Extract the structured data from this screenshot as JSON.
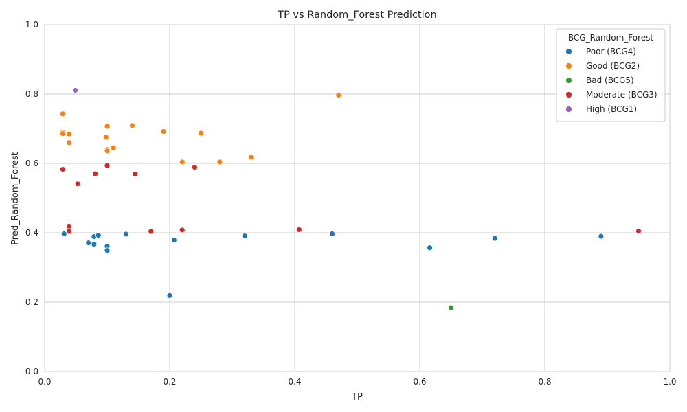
{
  "chart_data": {
    "type": "scatter",
    "title": "TP vs Random_Forest Prediction",
    "xlabel": "TP",
    "ylabel": "Pred_Random_Forest",
    "xlim": [
      0.0,
      1.0
    ],
    "ylim": [
      0.0,
      1.0
    ],
    "xticks": [
      "0.0",
      "0.2",
      "0.4",
      "0.6",
      "0.8",
      "1.0"
    ],
    "yticks": [
      "0.0",
      "0.2",
      "0.4",
      "0.6",
      "0.8",
      "1.0"
    ],
    "grid": true,
    "legend": {
      "title": "BCG_Random_Forest",
      "placement": "top-right"
    },
    "series": [
      {
        "name": "Poor (BCG4)",
        "color": "#1f77b4",
        "points": [
          [
            0.031,
            0.397
          ],
          [
            0.07,
            0.371
          ],
          [
            0.079,
            0.367
          ],
          [
            0.079,
            0.389
          ],
          [
            0.086,
            0.393
          ],
          [
            0.1,
            0.361
          ],
          [
            0.1,
            0.349
          ],
          [
            0.13,
            0.396
          ],
          [
            0.2,
            0.219
          ],
          [
            0.207,
            0.379
          ],
          [
            0.32,
            0.391
          ],
          [
            0.46,
            0.397
          ],
          [
            0.616,
            0.357
          ],
          [
            0.72,
            0.384
          ],
          [
            0.89,
            0.39
          ]
        ]
      },
      {
        "name": "Good (BCG2)",
        "color": "#ff7f0e",
        "points": [
          [
            0.029,
            0.743
          ],
          [
            0.029,
            0.69
          ],
          [
            0.029,
            0.686
          ],
          [
            0.039,
            0.685
          ],
          [
            0.039,
            0.66
          ],
          [
            0.098,
            0.676
          ],
          [
            0.1,
            0.707
          ],
          [
            0.1,
            0.64
          ],
          [
            0.1,
            0.636
          ],
          [
            0.11,
            0.645
          ],
          [
            0.14,
            0.709
          ],
          [
            0.19,
            0.692
          ],
          [
            0.22,
            0.604
          ],
          [
            0.25,
            0.687
          ],
          [
            0.28,
            0.604
          ],
          [
            0.33,
            0.618
          ],
          [
            0.47,
            0.797
          ]
        ]
      },
      {
        "name": "Bad (BCG5)",
        "color": "#2ca02c",
        "points": [
          [
            0.65,
            0.184
          ]
        ]
      },
      {
        "name": "Moderate (BCG3)",
        "color": "#d62728",
        "points": [
          [
            0.029,
            0.583
          ],
          [
            0.039,
            0.419
          ],
          [
            0.039,
            0.404
          ],
          [
            0.053,
            0.541
          ],
          [
            0.081,
            0.57
          ],
          [
            0.1,
            0.594
          ],
          [
            0.145,
            0.569
          ],
          [
            0.17,
            0.404
          ],
          [
            0.22,
            0.408
          ],
          [
            0.24,
            0.589
          ],
          [
            0.407,
            0.409
          ],
          [
            0.95,
            0.405
          ]
        ]
      },
      {
        "name": "High (BCG1)",
        "color": "#9467bd",
        "points": [
          [
            0.049,
            0.811
          ]
        ]
      }
    ]
  }
}
